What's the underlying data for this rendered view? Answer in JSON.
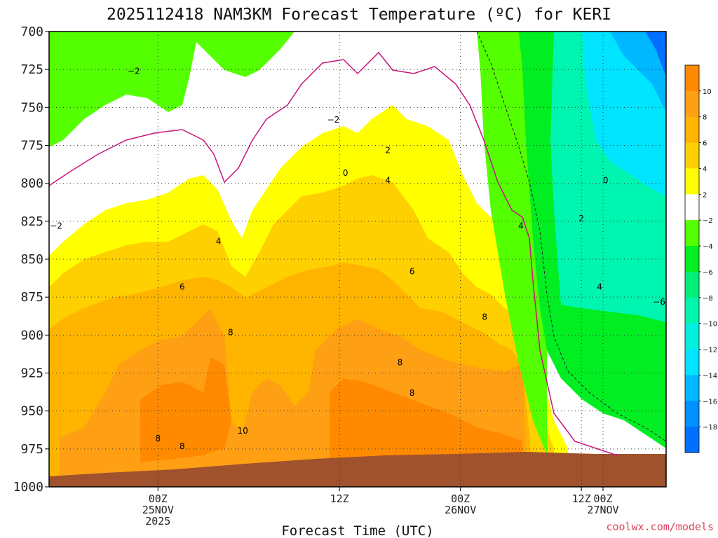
{
  "chart_data": {
    "type": "heatmap",
    "title": "2025112418 NAM3KM Forecast Temperature (ºC) for KERI",
    "xlabel": "Forecast Time (UTC)",
    "ylabel": "",
    "y_axis": {
      "ticks": [
        "700",
        "725",
        "750",
        "775",
        "800",
        "825",
        "850",
        "875",
        "900",
        "925",
        "950",
        "975",
        "1000"
      ],
      "lim": [
        1000,
        700
      ],
      "inverted": true
    },
    "x_axis": {
      "lim_hours": [
        -9,
        42
      ],
      "ticks": [
        {
          "hour": 0,
          "lines": [
            "00Z",
            "25NOV",
            "2025"
          ]
        },
        {
          "hour": 15,
          "lines": [
            "12Z"
          ]
        },
        {
          "hour": 25,
          "lines": [
            "00Z",
            "26NOV"
          ]
        },
        {
          "hour": 35,
          "lines": [
            "12Z"
          ]
        },
        {
          "hour": 45,
          "lines": [
            "00Z",
            "27NOV"
          ]
        }
      ]
    },
    "grid": true,
    "colorbar": {
      "placement": "right",
      "labels": [
        "10",
        "8",
        "6",
        "4",
        "2",
        "−2",
        "−4",
        "−6",
        "−8",
        "−10",
        "−12",
        "−14",
        "−16",
        "−18"
      ],
      "bands": [
        {
          "from": 12,
          "to": 10,
          "color": "#ff8a00"
        },
        {
          "from": 10,
          "to": 8,
          "color": "#ff9f14"
        },
        {
          "from": 8,
          "to": 6,
          "color": "#ffb400"
        },
        {
          "from": 6,
          "to": 4,
          "color": "#ffd000"
        },
        {
          "from": 4,
          "to": 2,
          "color": "#ffff00"
        },
        {
          "from": 2,
          "to": -2,
          "color": "#ffffff"
        },
        {
          "from": -2,
          "to": -4,
          "color": "#53ff00"
        },
        {
          "from": -4,
          "to": -6,
          "color": "#00ee22"
        },
        {
          "from": -6,
          "to": -8,
          "color": "#00f07a"
        },
        {
          "from": -8,
          "to": -10,
          "color": "#00f5b0"
        },
        {
          "from": -10,
          "to": -12,
          "color": "#00f0e0"
        },
        {
          "from": -12,
          "to": -14,
          "color": "#00e4ff"
        },
        {
          "from": -14,
          "to": -16,
          "color": "#00b8ff"
        },
        {
          "from": -16,
          "to": -18,
          "color": "#0090ff"
        },
        {
          "from": -18,
          "to": -20,
          "color": "#0070ff"
        }
      ]
    },
    "contour_labels": [
      {
        "text": "−2",
        "x": -9,
        "p": 830
      },
      {
        "text": "−2",
        "x": 14.5,
        "p": 760
      },
      {
        "text": "0",
        "x": 15.5,
        "p": 795
      },
      {
        "text": "2",
        "x": 19,
        "p": 780
      },
      {
        "text": "4",
        "x": 5,
        "p": 840
      },
      {
        "text": "4",
        "x": 19,
        "p": 800
      },
      {
        "text": "4",
        "x": 30,
        "p": 830
      },
      {
        "text": "6",
        "x": 2,
        "p": 870
      },
      {
        "text": "6",
        "x": 21,
        "p": 860
      },
      {
        "text": "8",
        "x": 6,
        "p": 900
      },
      {
        "text": "8",
        "x": 20,
        "p": 920
      },
      {
        "text": "8",
        "x": 21,
        "p": 940
      },
      {
        "text": "8",
        "x": 27,
        "p": 890
      },
      {
        "text": "8",
        "x": 0,
        "p": 970
      },
      {
        "text": "8",
        "x": 2,
        "p": 975
      },
      {
        "text": "10",
        "x": 7,
        "p": 965
      },
      {
        "text": "2",
        "x": 35,
        "p": 825
      },
      {
        "text": "4",
        "x": 36.5,
        "p": 870
      },
      {
        "text": "0",
        "x": 37,
        "p": 800
      },
      {
        "text": "−6",
        "x": 44,
        "p": 880
      },
      {
        "text": "−2",
        "x": -2,
        "p": 728
      }
    ],
    "credit": "coolwx.com/models"
  }
}
